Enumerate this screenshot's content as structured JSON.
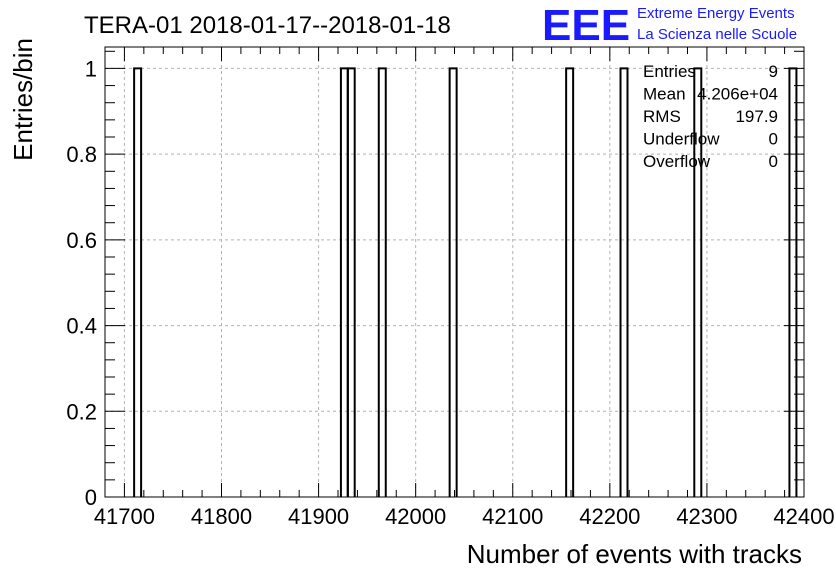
{
  "title": "TERA-01 2018-01-17--2018-01-18",
  "logo": {
    "mark": "EEE",
    "line1": "Extreme Energy Events",
    "line2": "La Scienza nelle Scuole",
    "color": "#1a1aff"
  },
  "stats": [
    {
      "label": "Entries",
      "value": "9"
    },
    {
      "label": "Mean",
      "value": "4.206e+04"
    },
    {
      "label": "RMS",
      "value": "197.9"
    },
    {
      "label": "Underflow",
      "value": "0"
    },
    {
      "label": "Overflow",
      "value": "0"
    }
  ],
  "chart_data": {
    "type": "bar",
    "title": "TERA-01 2018-01-17--2018-01-18",
    "xlabel": "Number of events with tracks",
    "ylabel": "Entries/bin",
    "xlim": [
      41680,
      42400
    ],
    "ylim": [
      0,
      1.05
    ],
    "x_ticks": [
      "41700",
      "41800",
      "41900",
      "42000",
      "42100",
      "42200",
      "42300",
      "42400"
    ],
    "y_ticks": [
      "0",
      "0.2",
      "0.4",
      "0.6",
      "0.8",
      "1"
    ],
    "grid": true,
    "bin_width": 7.2,
    "bins": [
      {
        "x": 41710,
        "value": 1
      },
      {
        "x": 41923,
        "value": 1
      },
      {
        "x": 41930,
        "value": 1
      },
      {
        "x": 41962,
        "value": 1
      },
      {
        "x": 42035,
        "value": 1
      },
      {
        "x": 42155,
        "value": 1
      },
      {
        "x": 42211,
        "value": 1
      },
      {
        "x": 42287,
        "value": 1
      },
      {
        "x": 42385,
        "value": 1
      }
    ]
  }
}
